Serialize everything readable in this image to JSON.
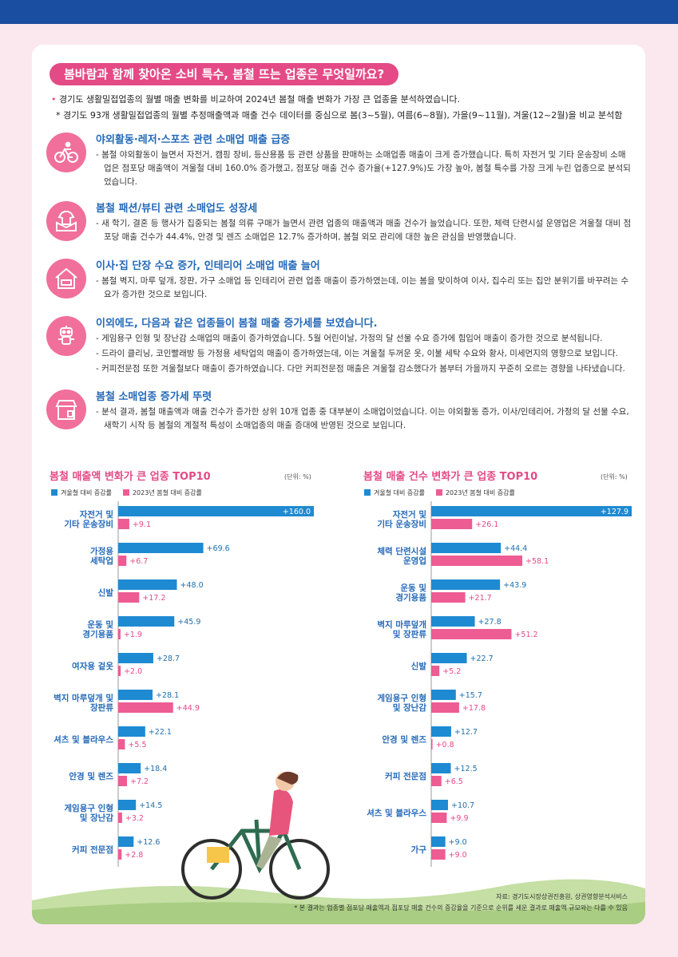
{
  "banner": "봄바람과 함께 찾아온 소비 특수, 봄철 뜨는 업종은 무엇일까요?",
  "intro": {
    "line1": "경기도 생활밀접업종의 월별 매출 변화를 비교하여 2024년 봄철 매출 변화가 가장 큰 업종을 분석하였습니다.",
    "line2": "* 경기도 93개 생활밀접업종의 월별 추정매출액과 매출 건수 데이터를 중심으로 봄(3~5월), 여름(6~8월), 가을(9~11월), 겨울(12~2월)을 비교 분석함"
  },
  "sections": [
    {
      "icon": "bicycle-icon",
      "title": "야외활동·레저·스포츠 관련 소매업 매출 급증",
      "lines": [
        "- 봄철 야외활동이 늘면서 자전거, 캠핑 장비, 등산용품 등 관련 상품을 판매하는 소매업종 매출이 크게 증가했습니다. 특히 자전거 및 기타 운송장비 소매업은 점포당 매출액이 겨울철 대비 160.0% 증가했고, 점포당 매출 건수 증가율(+127.9%)도 가장 높아, 봄철 특수를 가장 크게 누린 업종으로 분석되었습니다."
      ]
    },
    {
      "icon": "clothing-box-icon",
      "title": "봄철 패션/뷰티 관련 소매업도 성장세",
      "lines": [
        "- 새 학기, 결혼 등 행사가 집중되는 봄철 의류 구매가 늘면서 관련 업종의 매출액과 매출 건수가 늘었습니다. 또한, 체력 단련시설 운영업은 겨울철 대비 점포당 매출 건수가 44.4%, 안경 및 렌즈 소매업은 12.7% 증가하며, 봄철 외모 관리에 대한 높은 관심을 반영했습니다."
      ]
    },
    {
      "icon": "house-interior-icon",
      "title": "이사·집 단장 수요 증가, 인테리어 소매업 매출 늘어",
      "lines": [
        "- 봄철 벽지, 마루 덮개, 장판, 가구 소매업 등 인테리어 관련 업종 매출이 증가하였는데, 이는 봄을 맞이하여 이사, 집수리 또는 집안 분위기를 바꾸려는 수요가 증가한 것으로 보입니다."
      ]
    },
    {
      "icon": "robot-toy-icon",
      "title": "이외에도, 다음과 같은 업종들이 봄철 매출 증가세를 보였습니다.",
      "lines": [
        "- 게임용구 인형 및 장난감 소매업의 매출이 증가하였습니다. 5월 어린이날, 가정의 달 선물 수요 증가에 힘입어 매출이 증가한 것으로 분석됩니다.",
        "- 드라이 클리닝, 코인빨래방 등 가정용 세탁업의 매출이 증가하였는데, 이는 겨울철 두꺼운 옷, 이불 세탁 수요와 황사, 미세먼지의 영향으로 보입니다.",
        "- 커피전문점 또한 겨울철보다 매출이 증가하였습니다. 다만 커피전문점 매출은 겨울철 감소했다가 봄부터 가을까지 꾸준히 오르는 경향을 나타냈습니다."
      ]
    },
    {
      "icon": "storefront-icon",
      "title": "봄철 소매업종 증가세 뚜렷",
      "lines": [
        "- 분석 결과, 봄철 매출액과 매출 건수가 증가한 상위 10개 업종 중 대부분이 소매업이었습니다. 이는 야외활동 증가, 이사/인테리어, 가정의 달 선물 수요, 새학기 시작 등 봄철의 계절적 특성이 소매업종의 매출 증대에 반영된 것으로 보입니다."
      ]
    }
  ],
  "colors": {
    "blue": "#1e8ad2",
    "pink": "#ee5c94",
    "title_blue": "#2469b8"
  },
  "chart_data": [
    {
      "type": "bar",
      "title": "봄철 매출액 변화가 큰 업종 TOP10",
      "unit": "(단위: %)",
      "orientation": "horizontal",
      "categories": [
        [
          "자전거 및",
          "기타 운송장비"
        ],
        [
          "가정용",
          "세탁업"
        ],
        [
          "신발"
        ],
        [
          "운동 및",
          "경기용품"
        ],
        [
          "여자용 겉옷"
        ],
        [
          "벽지 마루덮개 및",
          "장판류"
        ],
        [
          "셔츠 및 블라우스"
        ],
        [
          "안경 및 렌즈"
        ],
        [
          "게임용구 인형",
          "및 장난감"
        ],
        [
          "커피 전문점"
        ]
      ],
      "series": [
        {
          "name": "겨울철 대비 증감률",
          "color": "#1e8ad2",
          "values": [
            160.0,
            69.6,
            48.0,
            45.9,
            28.7,
            28.1,
            22.1,
            18.4,
            14.5,
            12.6
          ],
          "labels": [
            "+160.0",
            "+69.6",
            "+48.0",
            "+45.9",
            "+28.7",
            "+28.1",
            "+22.1",
            "+18.4",
            "+14.5",
            "+12.6"
          ]
        },
        {
          "name": "2023년 봄철 대비 증감률",
          "color": "#ee5c94",
          "values": [
            9.1,
            6.7,
            17.2,
            1.9,
            2.0,
            44.9,
            5.5,
            7.2,
            3.2,
            2.8
          ],
          "labels": [
            "+9.1",
            "+6.7",
            "+17.2",
            "+1.9",
            "+2.0",
            "+44.9",
            "+5.5",
            "+7.2",
            "+3.2",
            "+2.8"
          ]
        }
      ],
      "xlim": [
        0,
        160
      ]
    },
    {
      "type": "bar",
      "title": "봄철 매출 건수 변화가 큰 업종 TOP10",
      "unit": "(단위: %)",
      "orientation": "horizontal",
      "categories": [
        [
          "자전거 및",
          "기타 운송장비"
        ],
        [
          "체력 단련시설",
          "운영업"
        ],
        [
          "운동 및",
          "경기용품"
        ],
        [
          "벽지 마루덮개",
          "및 장판류"
        ],
        [
          "신발"
        ],
        [
          "게임용구 인형",
          "및 장난감"
        ],
        [
          "안경 및 렌즈"
        ],
        [
          "커피 전문점"
        ],
        [
          "셔츠 및 블라우스"
        ],
        [
          "가구"
        ]
      ],
      "series": [
        {
          "name": "겨울철 대비 증감률",
          "color": "#1e8ad2",
          "values": [
            127.9,
            44.4,
            43.9,
            27.8,
            22.7,
            15.7,
            12.7,
            12.5,
            10.7,
            9.0
          ],
          "labels": [
            "+127.9",
            "+44.4",
            "+43.9",
            "+27.8",
            "+22.7",
            "+15.7",
            "+12.7",
            "+12.5",
            "+10.7",
            "+9.0"
          ]
        },
        {
          "name": "2023년 봄철 대비 증감률",
          "color": "#ee5c94",
          "values": [
            26.1,
            58.1,
            21.7,
            51.2,
            5.2,
            17.8,
            0.8,
            6.5,
            9.9,
            9.0
          ],
          "labels": [
            "+26.1",
            "+58.1",
            "+21.7",
            "+51.2",
            "+5.2",
            "+17.8",
            "+0.8",
            "+6.5",
            "+9.9",
            "+9.0"
          ]
        }
      ],
      "xlim": [
        0,
        127.9
      ]
    }
  ],
  "source": "자료: 경기도시장상권진흥원, 상권영향분석서비스",
  "note": "* 본 결과는 업종별 점포당 매출액과 점포당 매출 건수의 증감율을 기준으로 순위를 세운 결과로 매출액 규모와는 다를 수 있음"
}
